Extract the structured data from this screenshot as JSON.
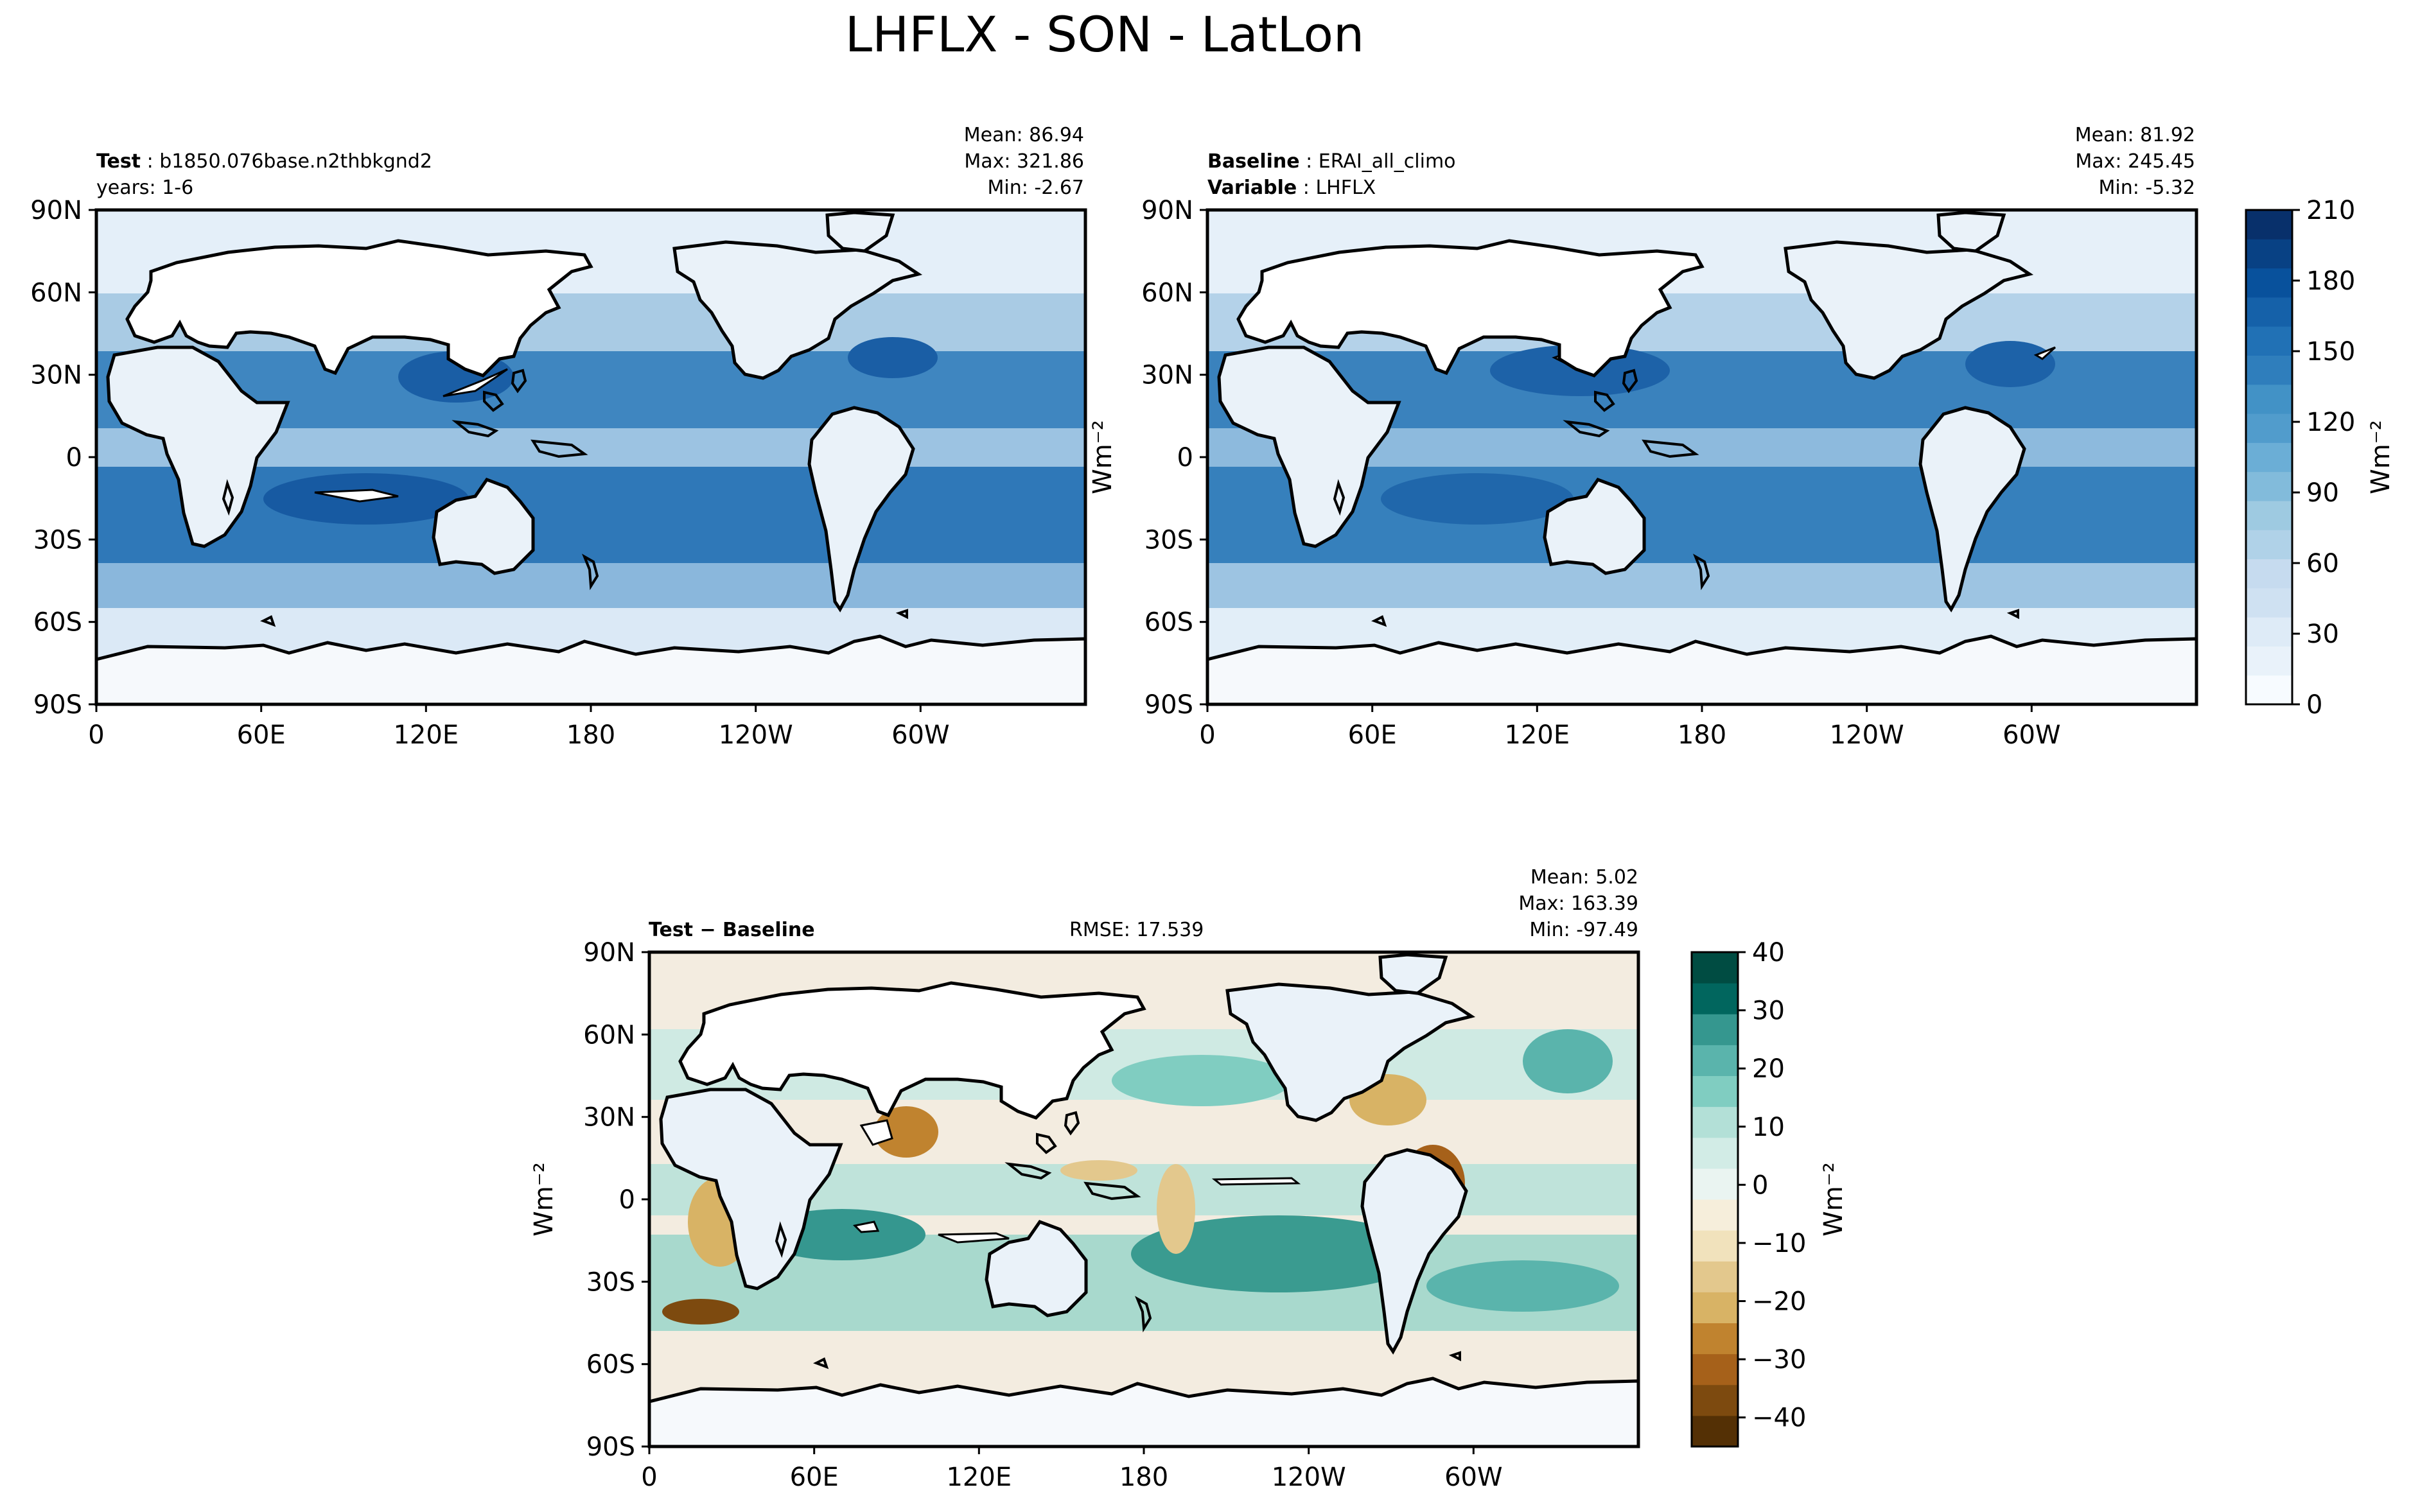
{
  "figure": {
    "title": "LHFLX - SON - LatLon"
  },
  "panels": {
    "test": {
      "name_label": "Test",
      "name_value": "b1850.076base.n2thbkgnd2",
      "line2": "years: 1-6",
      "stats": {
        "mean": "Mean: 86.94",
        "max": "Max: 321.86",
        "min": "Min: -2.67"
      }
    },
    "baseline": {
      "name_label": "Baseline",
      "name_value": "ERAI_all_climo",
      "var_label": "Variable",
      "var_value": "LHFLX",
      "stats": {
        "mean": "Mean: 81.92",
        "max": "Max: 245.45",
        "min": "Min: -5.32"
      }
    },
    "diff": {
      "name_label": "Test − Baseline",
      "rmse": "RMSE: 17.539",
      "stats": {
        "mean": "Mean:  5.02",
        "max": "Max: 163.39",
        "min": "Min: -97.49"
      }
    }
  },
  "axes": {
    "lon_ticks": [
      "0",
      "60E",
      "120E",
      "180",
      "120W",
      "60W"
    ],
    "lat_ticks": [
      "90N",
      "60N",
      "30N",
      "0",
      "30S",
      "60S",
      "90S"
    ],
    "units_label": "Wm⁻²"
  },
  "colors": {
    "sequential_blues": [
      "#f7fbff",
      "#e9f2fa",
      "#deebf7",
      "#cfe1f2",
      "#c6dbef",
      "#b0d2e8",
      "#9ecae1",
      "#82bbdb",
      "#6baed6",
      "#519ccc",
      "#4292c6",
      "#2f7ebc",
      "#2171b5",
      "#1561a9",
      "#08519c",
      "#084184",
      "#08306b"
    ],
    "diverging_brbg": [
      "#543005",
      "#7d4a0f",
      "#a6611a",
      "#c0832f",
      "#d8b365",
      "#e3c88d",
      "#f1e2bc",
      "#f6eedb",
      "#eaf4f1",
      "#d2ece6",
      "#b3e0d7",
      "#80cdc1",
      "#5ab4ac",
      "#35978f",
      "#01665e",
      "#004c42"
    ]
  },
  "chart_data": [
    {
      "type": "heatmap",
      "panel": "test",
      "projection": "cylindrical lat-lon",
      "title_left": "Test: b1850.076base.n2thbkgnd2",
      "subtitle_left": "years: 1-6",
      "stats": {
        "mean": 86.94,
        "max": 321.86,
        "min": -2.67
      },
      "xlim": [
        0,
        360
      ],
      "ylim": [
        -90,
        90
      ],
      "x_ticks": [
        "0",
        "60E",
        "120E",
        "180",
        "120W",
        "60W"
      ],
      "y_ticks": [
        "90N",
        "60N",
        "30N",
        "0",
        "30S",
        "60S",
        "90S"
      ],
      "colorbar": "shared_with_baseline"
    },
    {
      "type": "heatmap",
      "panel": "baseline",
      "projection": "cylindrical lat-lon",
      "title_left": "Baseline: ERAI_all_climo",
      "subtitle_left": "Variable: LHFLX",
      "stats": {
        "mean": 81.92,
        "max": 245.45,
        "min": -5.32
      },
      "xlim": [
        0,
        360
      ],
      "ylim": [
        -90,
        90
      ],
      "x_ticks": [
        "0",
        "60E",
        "120E",
        "180",
        "120W",
        "60W"
      ],
      "y_ticks": [
        "90N",
        "60N",
        "30N",
        "0",
        "30S",
        "60S",
        "90S"
      ],
      "colorbar": {
        "label": "Wm⁻²",
        "range": [
          0,
          210
        ],
        "ticks": [
          0,
          30,
          60,
          90,
          120,
          150,
          180,
          210
        ],
        "levels": 17,
        "colormap": "Blues"
      }
    },
    {
      "type": "heatmap",
      "panel": "diff",
      "projection": "cylindrical lat-lon",
      "title_left": "Test − Baseline",
      "title_center": "RMSE: 17.539",
      "stats": {
        "mean": 5.02,
        "max": 163.39,
        "min": -97.49,
        "rmse": 17.539
      },
      "xlim": [
        0,
        360
      ],
      "ylim": [
        -90,
        90
      ],
      "x_ticks": [
        "0",
        "60E",
        "120E",
        "180",
        "120W",
        "60W"
      ],
      "y_ticks": [
        "90N",
        "60N",
        "30N",
        "0",
        "30S",
        "60S",
        "90S"
      ],
      "ylabel": "Wm⁻²",
      "colorbar": {
        "label": "Wm⁻²",
        "range": [
          -45,
          40
        ],
        "ticks": [
          -40,
          -30,
          -20,
          -10,
          0,
          10,
          20,
          30,
          40
        ],
        "levels": 16,
        "colormap": "BrBG"
      }
    }
  ]
}
